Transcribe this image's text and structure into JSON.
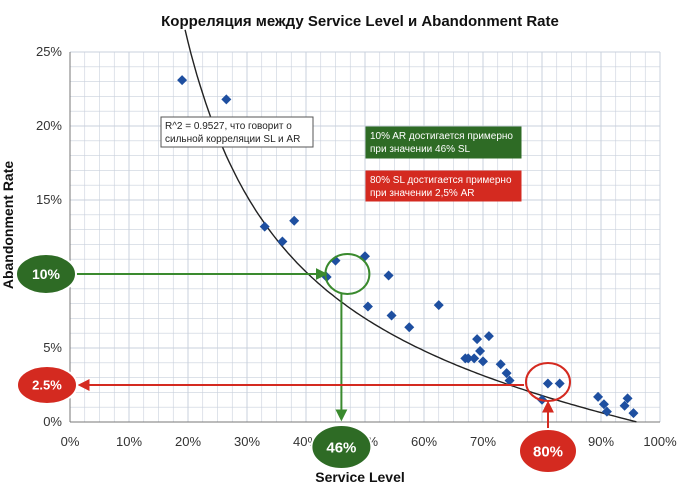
{
  "chart_data": {
    "type": "scatter",
    "title": "Корреляция между Service Level и Abandonment Rate",
    "xlabel": "Service Level",
    "ylabel": "Abandonment Rate",
    "xlim": [
      0,
      100
    ],
    "ylim": [
      0,
      25
    ],
    "x_ticks": [
      "0%",
      "10%",
      "20%",
      "30%",
      "40%",
      "50%",
      "60%",
      "70%",
      "80%",
      "90%",
      "100%"
    ],
    "y_ticks": [
      "0%",
      "5%",
      "10%",
      "15%",
      "20%",
      "25%"
    ],
    "grid": true,
    "points": [
      {
        "x": 19,
        "y": 23.1
      },
      {
        "x": 26.5,
        "y": 21.8
      },
      {
        "x": 33,
        "y": 13.2
      },
      {
        "x": 36,
        "y": 12.2
      },
      {
        "x": 38,
        "y": 13.6
      },
      {
        "x": 43.5,
        "y": 9.8
      },
      {
        "x": 45,
        "y": 10.9
      },
      {
        "x": 50,
        "y": 11.2
      },
      {
        "x": 50.5,
        "y": 7.8
      },
      {
        "x": 54,
        "y": 9.9
      },
      {
        "x": 54.5,
        "y": 7.2
      },
      {
        "x": 57.5,
        "y": 6.4
      },
      {
        "x": 62.5,
        "y": 7.9
      },
      {
        "x": 67,
        "y": 4.3
      },
      {
        "x": 67.5,
        "y": 4.3
      },
      {
        "x": 68.5,
        "y": 4.3
      },
      {
        "x": 69,
        "y": 5.6
      },
      {
        "x": 69.5,
        "y": 4.8
      },
      {
        "x": 70,
        "y": 4.1
      },
      {
        "x": 71,
        "y": 5.8
      },
      {
        "x": 73,
        "y": 3.9
      },
      {
        "x": 74,
        "y": 3.3
      },
      {
        "x": 74.5,
        "y": 2.8
      },
      {
        "x": 80,
        "y": 1.5
      },
      {
        "x": 81,
        "y": 2.6
      },
      {
        "x": 83,
        "y": 2.6
      },
      {
        "x": 89.5,
        "y": 1.7
      },
      {
        "x": 90.5,
        "y": 1.2
      },
      {
        "x": 91,
        "y": 0.7
      },
      {
        "x": 94,
        "y": 1.1
      },
      {
        "x": 94.5,
        "y": 1.6
      },
      {
        "x": 95.5,
        "y": 0.6
      }
    ],
    "trendline": {
      "r2": 0.9527
    },
    "annotations": {
      "r2_note": [
        "R^2 = 0.9527, что говорит о",
        "сильной корреляции SL и AR"
      ],
      "green_note": [
        "10% AR достигается примерно",
        "при значении 46% SL"
      ],
      "red_note": [
        "80% SL достигается примерно",
        "при значении 2,5% AR"
      ],
      "green_ar_bubble": "10%",
      "green_sl_bubble": "46%",
      "red_ar_bubble": "2.5%",
      "red_sl_bubble": "80%",
      "green_target": {
        "x": 46,
        "y": 10
      },
      "red_target": {
        "x": 80,
        "y": 2.5
      }
    },
    "colors": {
      "points": "#1e4fa0",
      "trend": "#222222",
      "green": "#2e6b25",
      "green_arrow": "#3a8a2e",
      "red": "#d42a20",
      "grid": "#c9d0dc"
    }
  }
}
